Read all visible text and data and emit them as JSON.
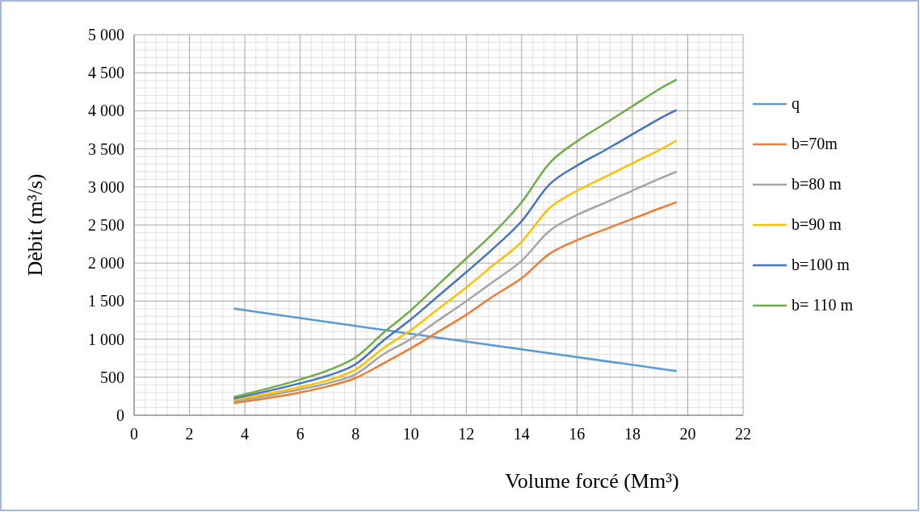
{
  "chart_data": {
    "type": "line",
    "xlabel": "Volume forcé (Mm³)",
    "ylabel": "Dèbit (m³/s)",
    "xlim": [
      0,
      22
    ],
    "xticks": [
      0,
      2,
      4,
      6,
      8,
      10,
      12,
      14,
      16,
      18,
      20,
      22
    ],
    "ylim": [
      0,
      5000
    ],
    "yticks": [
      0,
      500,
      {
        "value": 1000,
        "label": "1 000"
      },
      {
        "value": 1500,
        "label": "1 500"
      },
      {
        "value": 2000,
        "label": "2 000"
      },
      {
        "value": 2500,
        "label": "2 500"
      },
      {
        "value": 3000,
        "label": "3 000"
      },
      {
        "value": 3500,
        "label": "3 500"
      },
      {
        "value": 4000,
        "label": "4 000"
      },
      {
        "value": 4500,
        "label": "4 500"
      },
      {
        "value": 5000,
        "label": "5 000"
      }
    ],
    "grid": true,
    "legend": "right",
    "marker": "none",
    "line_style": "solid",
    "series": [
      {
        "name": "q",
        "color": "#5b9bd5",
        "x": [
          3.6,
          10,
          19.6
        ],
        "values": [
          1400,
          1070,
          580
        ]
      },
      {
        "name": "b=70m",
        "color": "#ed7d31",
        "x": [
          3.6,
          6,
          7,
          8,
          9,
          10,
          11,
          12,
          13,
          14,
          15,
          16,
          17,
          18,
          19,
          19.6
        ],
        "values": [
          160,
          300,
          380,
          490,
          680,
          880,
          1100,
          1320,
          1570,
          1800,
          2120,
          2300,
          2440,
          2580,
          2720,
          2800
        ]
      },
      {
        "name": "b=80 m",
        "color": "#a5a5a5",
        "x": [
          3.6,
          6,
          7,
          8,
          9,
          10,
          11,
          12,
          13,
          14,
          15,
          16,
          17,
          18,
          19,
          19.6
        ],
        "values": [
          180,
          340,
          420,
          540,
          800,
          1000,
          1250,
          1500,
          1760,
          2030,
          2420,
          2630,
          2790,
          2950,
          3110,
          3200
        ]
      },
      {
        "name": "b=90 m",
        "color": "#ffc000",
        "x": [
          3.6,
          6,
          7,
          8,
          9,
          10,
          11,
          12,
          13,
          14,
          15,
          16,
          17,
          18,
          19,
          19.6
        ],
        "values": [
          200,
          370,
          460,
          600,
          880,
          1120,
          1400,
          1680,
          1980,
          2280,
          2720,
          2950,
          3130,
          3310,
          3490,
          3610
        ]
      },
      {
        "name": "b=100 m",
        "color": "#4472c4",
        "x": [
          3.6,
          6,
          7,
          8,
          9,
          10,
          11,
          12,
          13,
          14,
          15,
          16,
          17,
          18,
          19,
          19.6
        ],
        "values": [
          220,
          420,
          520,
          670,
          980,
          1260,
          1570,
          1880,
          2200,
          2550,
          3030,
          3280,
          3480,
          3690,
          3900,
          4010
        ]
      },
      {
        "name": "b= 110 m",
        "color": "#70ad47",
        "x": [
          3.6,
          6,
          7,
          8,
          9,
          10,
          11,
          12,
          13,
          14,
          15,
          16,
          17,
          18,
          19,
          19.6
        ],
        "values": [
          240,
          470,
          590,
          760,
          1080,
          1380,
          1720,
          2060,
          2400,
          2800,
          3310,
          3600,
          3830,
          4060,
          4290,
          4410
        ]
      }
    ]
  }
}
